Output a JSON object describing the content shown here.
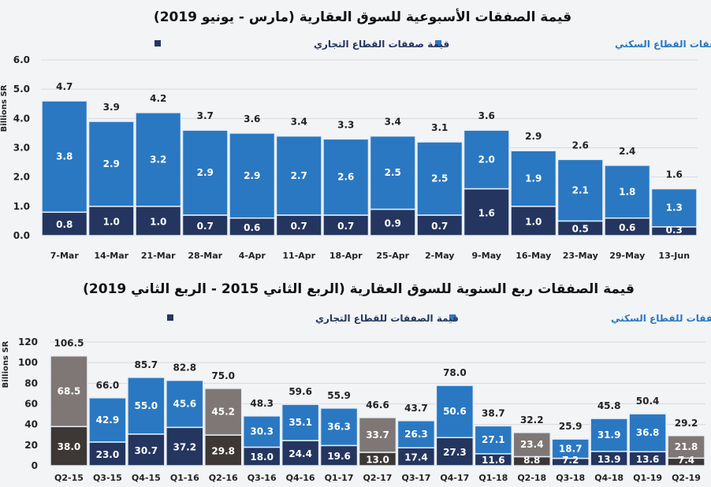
{
  "chart_data": [
    {
      "type": "bar",
      "stacked": true,
      "title": "قيمة الصفقات الأسبوعية للسوق العقارية (مارس - يونيو 2019)",
      "ylabel": "Billions SR",
      "ylim": [
        0,
        6.0
      ],
      "yticks": [
        "0.0",
        "1.0",
        "2.0",
        "3.0",
        "4.0",
        "5.0",
        "6.0"
      ],
      "grid": true,
      "legend_placement": "top",
      "categories": [
        "7-Mar",
        "14-Mar",
        "21-Mar",
        "28-Mar",
        "4-Apr",
        "11-Apr",
        "18-Apr",
        "25-Apr",
        "2-May",
        "9-May",
        "16-May",
        "23-May",
        "29-May",
        "13-Jun"
      ],
      "series": [
        {
          "name": "قيمة صفقات القطاع التجاري",
          "color": "#24365f",
          "values": [
            0.8,
            1.0,
            1.0,
            0.7,
            0.6,
            0.7,
            0.7,
            0.9,
            0.7,
            1.6,
            1.0,
            0.5,
            0.6,
            0.3
          ]
        },
        {
          "name": "قيمة صفقات القطاع السكني",
          "color": "#2a78c2",
          "values": [
            3.8,
            2.9,
            3.2,
            2.9,
            2.9,
            2.7,
            2.6,
            2.5,
            2.5,
            2.0,
            1.9,
            2.1,
            1.8,
            1.3
          ]
        }
      ],
      "totals": [
        "4.7",
        "3.9",
        "4.2",
        "3.7",
        "3.6",
        "3.4",
        "3.3",
        "3.4",
        "3.1",
        "3.6",
        "2.9",
        "2.6",
        "2.4",
        "1.6"
      ]
    },
    {
      "type": "bar",
      "stacked": true,
      "title": "قيمة الصفقات ربع السنوية للسوق العقارية (الربع الثاني 2015 - الربع الثاني 2019)",
      "ylabel": "Billions SR",
      "ylim": [
        0,
        120
      ],
      "yticks": [
        "0",
        "20",
        "40",
        "60",
        "80",
        "100",
        "120"
      ],
      "grid": true,
      "legend_placement": "top",
      "highlight_color_commercial": "#3d3735",
      "highlight_color_residential": "#7e7775",
      "highlighted_categories": [
        "Q2-15",
        "Q2-16",
        "Q2-17",
        "Q2-18",
        "Q2-19"
      ],
      "categories": [
        "Q2-15",
        "Q3-15",
        "Q4-15",
        "Q1-16",
        "Q2-16",
        "Q3-16",
        "Q4-16",
        "Q1-17",
        "Q2-17",
        "Q3-17",
        "Q4-17",
        "Q1-18",
        "Q2-18",
        "Q3-18",
        "Q4-18",
        "Q1-19",
        "Q2-19"
      ],
      "series": [
        {
          "name": "قيمة الصفقات للقطاع التجاري",
          "color": "#24365f",
          "values": [
            38.0,
            23.0,
            30.7,
            37.2,
            29.8,
            18.0,
            24.4,
            19.6,
            13.0,
            17.4,
            27.3,
            11.6,
            8.8,
            7.2,
            13.9,
            13.6,
            7.4
          ]
        },
        {
          "name": "قيمة الصفقات للقطاع السكني",
          "color": "#2a78c2",
          "values": [
            68.5,
            42.9,
            55.0,
            45.6,
            45.2,
            30.3,
            35.1,
            36.3,
            33.7,
            26.3,
            50.6,
            27.1,
            23.4,
            18.7,
            31.9,
            36.8,
            21.8
          ]
        }
      ],
      "totals": [
        "106.5",
        "66.0",
        "85.7",
        "82.8",
        "75.0",
        "48.3",
        "59.6",
        "55.9",
        "46.6",
        "43.7",
        "78.0",
        "38.7",
        "32.2",
        "25.9",
        "45.8",
        "50.4",
        "29.2"
      ]
    }
  ]
}
